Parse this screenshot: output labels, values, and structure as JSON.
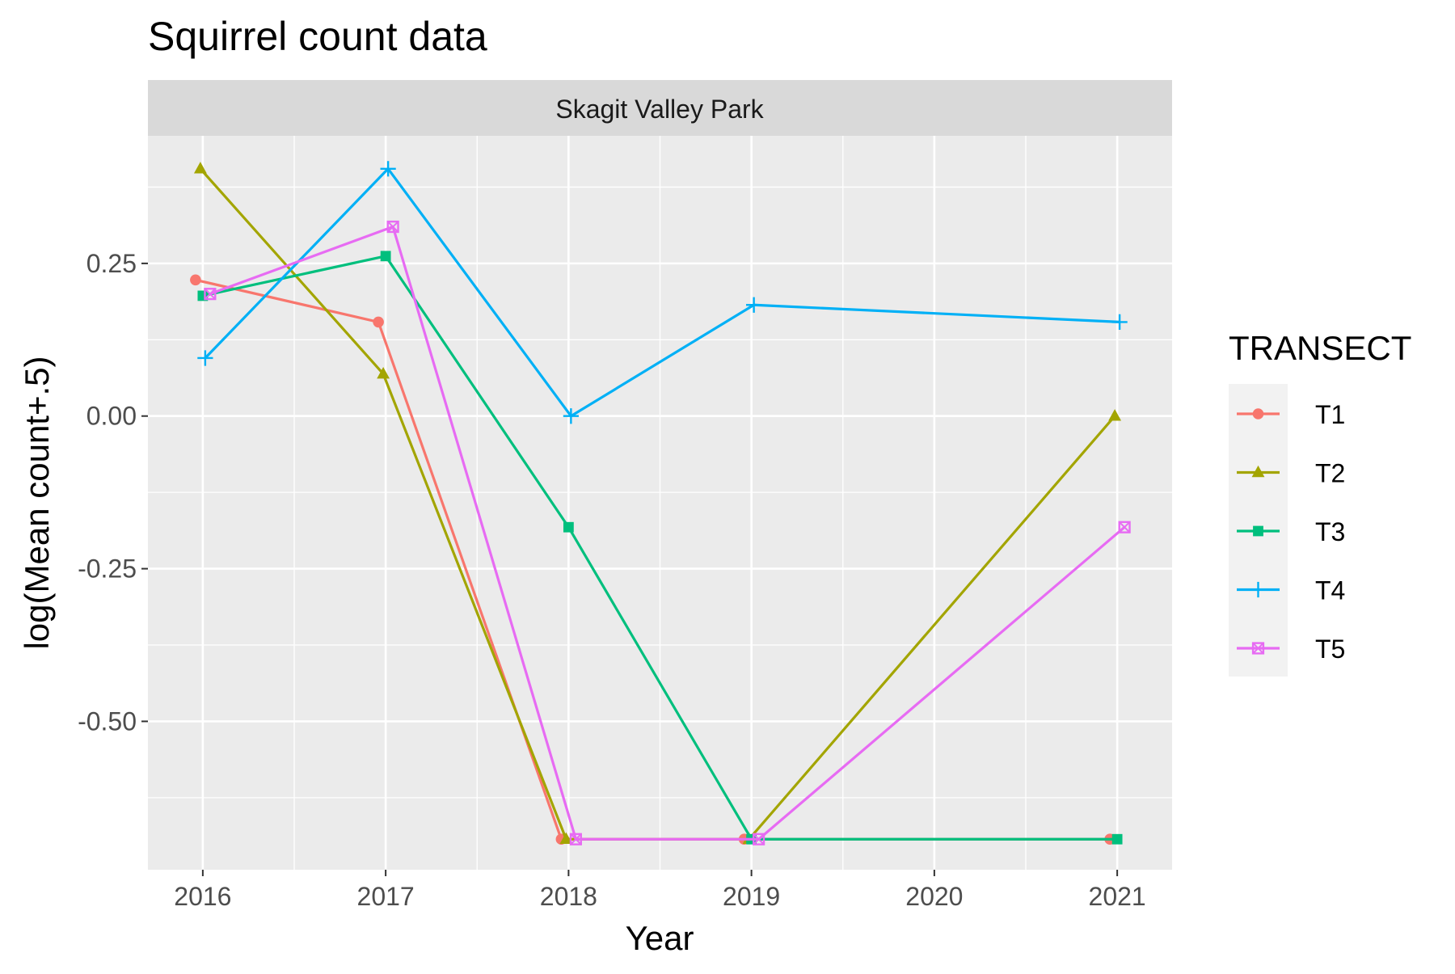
{
  "chart_data": {
    "type": "line",
    "title": "Squirrel count data",
    "facet_label": "Skagit Valley Park",
    "xlabel": "Year",
    "ylabel": "log(Mean count+.5)",
    "x_ticks": [
      "2016",
      "2017",
      "2018",
      "2019",
      "2020",
      "2021"
    ],
    "y_ticks": [
      {
        "value": 0.25,
        "label": "0.25"
      },
      {
        "value": 0.0,
        "label": "0.00"
      },
      {
        "value": -0.25,
        "label": "-0.25"
      },
      {
        "value": -0.5,
        "label": "-0.50"
      }
    ],
    "xlim": [
      2015.7,
      2021.3
    ],
    "ylim": [
      -0.743,
      0.459
    ],
    "grid": true,
    "legend_title": "TRANSECT",
    "legend_position": "right",
    "series": [
      {
        "name": "T1",
        "color": "#F8766D",
        "marker": "circle",
        "points": [
          [
            2016,
            0.223
          ],
          [
            2017,
            0.154
          ],
          [
            2018,
            -0.693
          ],
          [
            2019,
            -0.693
          ],
          [
            2021,
            -0.693
          ]
        ]
      },
      {
        "name": "T2",
        "color": "#A3A500",
        "marker": "triangle",
        "points": [
          [
            2016,
            0.405
          ],
          [
            2017,
            0.069
          ],
          [
            2018,
            -0.693
          ],
          [
            2019,
            -0.693
          ],
          [
            2021,
            0.0
          ]
        ]
      },
      {
        "name": "T3",
        "color": "#00BF7D",
        "marker": "square",
        "points": [
          [
            2016,
            0.197
          ],
          [
            2017,
            0.262
          ],
          [
            2018,
            -0.182
          ],
          [
            2019,
            -0.693
          ],
          [
            2021,
            -0.693
          ]
        ]
      },
      {
        "name": "T4",
        "color": "#00B0F6",
        "marker": "plus",
        "points": [
          [
            2016,
            0.095
          ],
          [
            2017,
            0.405
          ],
          [
            2018,
            0.0
          ],
          [
            2019,
            0.182
          ],
          [
            2021,
            0.154
          ]
        ]
      },
      {
        "name": "T5",
        "color": "#E76BF3",
        "marker": "square-x",
        "points": [
          [
            2016,
            0.2
          ],
          [
            2017,
            0.31
          ],
          [
            2018,
            -0.693
          ],
          [
            2019,
            -0.693
          ],
          [
            2021,
            -0.182
          ]
        ]
      }
    ]
  }
}
